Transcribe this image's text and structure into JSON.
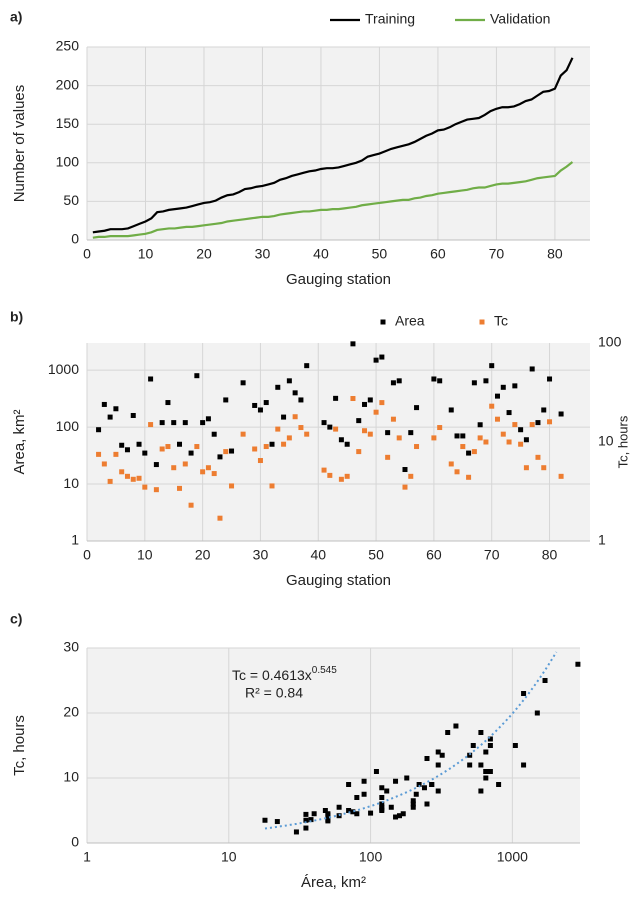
{
  "chart_data": [
    {
      "type": "line",
      "panel_label": "a)",
      "xlabel": "Gauging station",
      "ylabel": "Number of values",
      "x": [
        1,
        2,
        3,
        4,
        5,
        6,
        7,
        8,
        9,
        10,
        11,
        12,
        13,
        14,
        15,
        16,
        17,
        18,
        19,
        20,
        21,
        22,
        23,
        24,
        25,
        26,
        27,
        28,
        29,
        30,
        31,
        32,
        33,
        34,
        35,
        36,
        37,
        38,
        39,
        40,
        41,
        42,
        43,
        44,
        45,
        46,
        47,
        48,
        49,
        50,
        51,
        52,
        53,
        54,
        55,
        56,
        57,
        58,
        59,
        60,
        61,
        62,
        63,
        64,
        65,
        66,
        67,
        68,
        69,
        70,
        71,
        72,
        73,
        74,
        75,
        76,
        77,
        78,
        79,
        80,
        81,
        82,
        83
      ],
      "series": [
        {
          "name": "Training",
          "color": "#000000",
          "values": [
            10,
            11,
            12,
            14,
            14,
            14,
            15,
            18,
            21,
            24,
            28,
            36,
            37,
            39,
            40,
            41,
            42,
            44,
            46,
            48,
            49,
            51,
            55,
            58,
            59,
            62,
            66,
            67,
            69,
            70,
            72,
            74,
            78,
            80,
            83,
            85,
            87,
            89,
            90,
            92,
            93,
            93,
            94,
            96,
            98,
            100,
            103,
            108,
            110,
            112,
            115,
            118,
            120,
            122,
            124,
            127,
            131,
            135,
            138,
            142,
            143,
            146,
            150,
            153,
            156,
            157,
            158,
            162,
            167,
            170,
            172,
            172,
            173,
            176,
            180,
            182,
            187,
            192,
            193,
            196,
            213,
            220,
            236
          ]
        },
        {
          "name": "Validation",
          "color": "#70ad47",
          "values": [
            3,
            4,
            4,
            5,
            5,
            5,
            5,
            6,
            7,
            8,
            10,
            13,
            14,
            15,
            15,
            16,
            17,
            17,
            18,
            19,
            20,
            21,
            22,
            24,
            25,
            26,
            27,
            28,
            29,
            30,
            30,
            31,
            33,
            34,
            35,
            36,
            37,
            37,
            38,
            39,
            39,
            40,
            40,
            41,
            42,
            43,
            45,
            46,
            47,
            48,
            49,
            50,
            51,
            52,
            52,
            54,
            55,
            57,
            58,
            60,
            61,
            62,
            63,
            64,
            65,
            67,
            68,
            68,
            70,
            72,
            73,
            73,
            74,
            75,
            76,
            78,
            80,
            81,
            82,
            83,
            90,
            95,
            101
          ]
        }
      ],
      "xlim": [
        0,
        86
      ],
      "xticks": [
        0,
        10,
        20,
        30,
        40,
        50,
        60,
        70,
        80
      ],
      "ylim": [
        0,
        250
      ],
      "yticks": [
        0,
        50,
        100,
        150,
        200,
        250
      ],
      "grid": true,
      "legend": "top"
    },
    {
      "type": "dot",
      "panel_label": "b)",
      "xlabel": "Gauging station",
      "ylabel": "Area, km²",
      "y2label": "Tc, hours",
      "x": [
        2,
        3,
        4,
        5,
        6,
        7,
        8,
        9,
        10,
        11,
        12,
        13,
        14,
        15,
        16,
        17,
        18,
        19,
        20,
        21,
        22,
        23,
        24,
        25,
        27,
        29,
        30,
        31,
        32,
        33,
        34,
        35,
        36,
        37,
        38,
        41,
        42,
        43,
        44,
        45,
        46,
        47,
        48,
        49,
        50,
        51,
        52,
        53,
        54,
        55,
        56,
        57,
        60,
        61,
        63,
        64,
        65,
        66,
        67,
        68,
        69,
        70,
        71,
        72,
        73,
        74,
        75,
        76,
        77,
        78,
        79,
        80,
        82
      ],
      "series": [
        {
          "name": "Area",
          "color": "#000000",
          "axis": "y",
          "values": [
            90,
            250,
            150,
            210,
            48,
            40,
            160,
            50,
            35,
            700,
            22,
            120,
            270,
            120,
            50,
            120,
            35,
            800,
            120,
            140,
            75,
            30,
            300,
            38,
            600,
            240,
            200,
            270,
            50,
            500,
            150,
            650,
            400,
            300,
            1200,
            120,
            100,
            320,
            60,
            50,
            2900,
            130,
            250,
            300,
            1500,
            1700,
            80,
            600,
            650,
            18,
            80,
            220,
            700,
            650,
            200,
            70,
            70,
            35,
            600,
            110,
            650,
            1200,
            350,
            500,
            180,
            530,
            90,
            60,
            1050,
            120,
            200,
            700,
            170
          ]
        },
        {
          "name": "Tc",
          "color": "#ed7d31",
          "axis": "y2",
          "values": [
            7.5,
            6,
            4,
            7.5,
            5,
            4.5,
            4.2,
            4.3,
            3.5,
            15,
            3.3,
            8.5,
            9,
            5.5,
            3.4,
            6,
            2.3,
            9,
            5,
            5.5,
            4.8,
            1.7,
            8,
            3.6,
            12,
            8.5,
            6.5,
            9,
            3.6,
            13.5,
            9.5,
            11,
            18,
            14,
            12,
            5.2,
            4.6,
            13.5,
            4.2,
            4.5,
            27.5,
            8,
            13,
            12,
            20,
            25,
            7,
            17,
            11,
            3.5,
            4.5,
            9,
            11,
            14,
            6,
            5,
            9,
            4.4,
            8,
            11,
            10,
            23,
            17,
            12,
            10,
            15,
            9.5,
            5.5,
            15,
            7,
            5.5,
            16,
            4.5
          ]
        }
      ],
      "xlim": [
        0,
        87
      ],
      "xticks": [
        0,
        10,
        20,
        30,
        40,
        50,
        60,
        70,
        80
      ],
      "ylim": [
        1,
        3000
      ],
      "yticks": [
        1,
        10,
        100,
        1000
      ],
      "ylog": true,
      "y2lim": [
        1,
        100
      ],
      "y2ticks": [
        1,
        10,
        100
      ],
      "y2log": true,
      "grid": true,
      "legend": "top"
    },
    {
      "type": "scatter",
      "panel_label": "c)",
      "xlabel": "Área, km²",
      "ylabel": "Tc, hours",
      "color": "#000000",
      "x": [
        90,
        250,
        150,
        210,
        48,
        40,
        160,
        50,
        35,
        700,
        22,
        120,
        270,
        120,
        50,
        120,
        35,
        800,
        120,
        140,
        75,
        30,
        300,
        38,
        600,
        240,
        200,
        270,
        50,
        500,
        150,
        650,
        400,
        300,
        1200,
        120,
        100,
        320,
        60,
        50,
        2900,
        130,
        250,
        300,
        1500,
        1700,
        80,
        600,
        650,
        18,
        80,
        220,
        700,
        650,
        200,
        70,
        70,
        35,
        600,
        110,
        650,
        1200,
        350,
        500,
        180,
        530,
        90,
        60,
        1050,
        120,
        200,
        700,
        170
      ],
      "values": [
        7.5,
        6,
        4,
        7.5,
        5,
        4.5,
        4.2,
        4.3,
        3.5,
        15,
        3.3,
        8.5,
        9,
        5.5,
        3.4,
        6,
        2.3,
        9,
        5,
        5.5,
        4.8,
        1.7,
        8,
        3.6,
        12,
        8.5,
        6.5,
        9,
        3.6,
        13.5,
        9.5,
        11,
        18,
        14,
        12,
        5.2,
        4.6,
        13.5,
        4.2,
        4.5,
        27.5,
        8,
        13,
        12,
        20,
        25,
        7,
        17,
        11,
        3.5,
        4.5,
        9,
        11,
        14,
        6,
        5,
        9,
        4.4,
        8,
        11,
        10,
        23,
        17,
        12,
        10,
        15,
        9.5,
        5.5,
        15,
        7,
        5.5,
        16,
        4.5
      ],
      "trendline": {
        "coefficient": 0.4613,
        "exponent": 0.545,
        "color": "#5b9bd5",
        "label": "Tc = 0.4613x",
        "exponent_label": "0.545",
        "r2_label": "R² = 0.84"
      },
      "xlim": [
        1,
        3000
      ],
      "xticks": [
        1,
        10,
        100,
        1000
      ],
      "xlog": true,
      "ylim": [
        0,
        30
      ],
      "yticks": [
        0,
        10,
        20,
        30
      ],
      "grid": true
    }
  ]
}
